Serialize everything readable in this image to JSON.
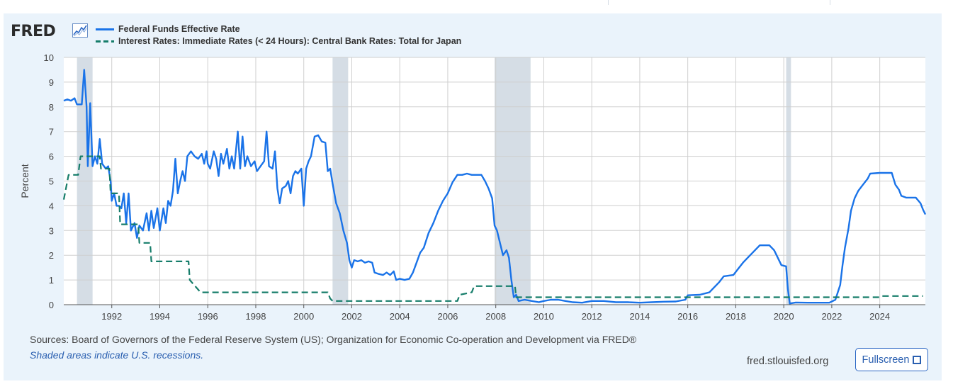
{
  "brand": {
    "logo_text": "FRED",
    "logo_icon": "line-chart-icon"
  },
  "colors": {
    "series_1": "#1a73e8",
    "series_2": "#167d6a",
    "recession": "#d5dde5",
    "card_bg": "#eaf3fb"
  },
  "chart_data": {
    "type": "line",
    "ylabel": "Percent",
    "xlabel": "",
    "ylim": [
      0,
      10
    ],
    "xlim": [
      1990.0,
      2025.9
    ],
    "yticks": [
      "0",
      "1",
      "2",
      "3",
      "4",
      "5",
      "6",
      "7",
      "8",
      "9",
      "10"
    ],
    "xticks": [
      "1992",
      "1994",
      "1996",
      "1998",
      "2000",
      "2002",
      "2004",
      "2006",
      "2008",
      "2010",
      "2012",
      "2014",
      "2016",
      "2018",
      "2020",
      "2022",
      "2024"
    ],
    "grid": true,
    "legend_position": "top-left",
    "recessions": [
      [
        1990.55,
        1991.2
      ],
      [
        2001.2,
        2001.85
      ],
      [
        2007.95,
        2009.45
      ],
      [
        2020.1,
        2020.3
      ]
    ],
    "series": [
      {
        "name": "Federal Funds Effective Rate",
        "style": "solid",
        "points": [
          [
            1990.0,
            8.25
          ],
          [
            1990.15,
            8.3
          ],
          [
            1990.3,
            8.25
          ],
          [
            1990.45,
            8.35
          ],
          [
            1990.55,
            8.1
          ],
          [
            1990.75,
            8.1
          ],
          [
            1990.85,
            9.5
          ],
          [
            1990.95,
            8.0
          ],
          [
            1991.0,
            5.6
          ],
          [
            1991.1,
            8.15
          ],
          [
            1991.2,
            5.6
          ],
          [
            1991.3,
            6.0
          ],
          [
            1991.4,
            5.7
          ],
          [
            1991.5,
            6.7
          ],
          [
            1991.6,
            5.7
          ],
          [
            1991.75,
            5.5
          ],
          [
            1991.85,
            5.6
          ],
          [
            1991.95,
            5.0
          ],
          [
            1992.0,
            4.2
          ],
          [
            1992.1,
            4.5
          ],
          [
            1992.2,
            4.0
          ],
          [
            1992.3,
            4.0
          ],
          [
            1992.4,
            3.9
          ],
          [
            1992.5,
            4.5
          ],
          [
            1992.6,
            3.3
          ],
          [
            1992.7,
            4.5
          ],
          [
            1992.8,
            3.0
          ],
          [
            1992.95,
            3.3
          ],
          [
            1993.05,
            2.7
          ],
          [
            1993.15,
            3.2
          ],
          [
            1993.3,
            3.0
          ],
          [
            1993.45,
            3.7
          ],
          [
            1993.55,
            3.0
          ],
          [
            1993.65,
            3.8
          ],
          [
            1993.75,
            3.1
          ],
          [
            1993.9,
            3.9
          ],
          [
            1994.0,
            3.0
          ],
          [
            1994.15,
            3.9
          ],
          [
            1994.25,
            3.3
          ],
          [
            1994.35,
            4.2
          ],
          [
            1994.45,
            4.0
          ],
          [
            1994.55,
            4.6
          ],
          [
            1994.65,
            5.9
          ],
          [
            1994.75,
            4.5
          ],
          [
            1994.85,
            5.0
          ],
          [
            1994.95,
            5.4
          ],
          [
            1995.05,
            5.0
          ],
          [
            1995.15,
            6.0
          ],
          [
            1995.3,
            6.2
          ],
          [
            1995.45,
            6.0
          ],
          [
            1995.6,
            5.9
          ],
          [
            1995.75,
            6.1
          ],
          [
            1995.85,
            5.7
          ],
          [
            1995.95,
            6.2
          ],
          [
            1996.0,
            5.7
          ],
          [
            1996.1,
            5.5
          ],
          [
            1996.25,
            6.2
          ],
          [
            1996.35,
            5.9
          ],
          [
            1996.45,
            5.2
          ],
          [
            1996.55,
            6.1
          ],
          [
            1996.65,
            5.7
          ],
          [
            1996.8,
            6.3
          ],
          [
            1996.9,
            5.5
          ],
          [
            1997.0,
            6.0
          ],
          [
            1997.1,
            5.5
          ],
          [
            1997.25,
            7.0
          ],
          [
            1997.35,
            5.5
          ],
          [
            1997.45,
            6.8
          ],
          [
            1997.55,
            5.6
          ],
          [
            1997.65,
            6.0
          ],
          [
            1997.8,
            5.6
          ],
          [
            1997.95,
            5.8
          ],
          [
            1998.05,
            5.4
          ],
          [
            1998.2,
            5.6
          ],
          [
            1998.35,
            5.8
          ],
          [
            1998.45,
            7.0
          ],
          [
            1998.55,
            5.6
          ],
          [
            1998.7,
            5.5
          ],
          [
            1998.8,
            6.2
          ],
          [
            1998.9,
            4.7
          ],
          [
            1999.0,
            4.1
          ],
          [
            1999.1,
            4.7
          ],
          [
            1999.25,
            4.8
          ],
          [
            1999.35,
            5.0
          ],
          [
            1999.45,
            4.5
          ],
          [
            1999.55,
            5.2
          ],
          [
            1999.65,
            5.4
          ],
          [
            1999.75,
            5.3
          ],
          [
            1999.9,
            5.5
          ],
          [
            2000.0,
            4.0
          ],
          [
            2000.1,
            5.5
          ],
          [
            2000.2,
            5.8
          ],
          [
            2000.3,
            6.0
          ],
          [
            2000.45,
            6.8
          ],
          [
            2000.6,
            6.85
          ],
          [
            2000.75,
            6.6
          ],
          [
            2000.9,
            6.55
          ],
          [
            2001.0,
            5.4
          ],
          [
            2001.1,
            5.5
          ],
          [
            2001.2,
            4.9
          ],
          [
            2001.35,
            4.1
          ],
          [
            2001.5,
            3.7
          ],
          [
            2001.65,
            3.0
          ],
          [
            2001.8,
            2.5
          ],
          [
            2001.9,
            1.8
          ],
          [
            2002.0,
            1.5
          ],
          [
            2002.1,
            1.8
          ],
          [
            2002.25,
            1.75
          ],
          [
            2002.4,
            1.8
          ],
          [
            2002.55,
            1.7
          ],
          [
            2002.7,
            1.75
          ],
          [
            2002.85,
            1.7
          ],
          [
            2002.95,
            1.3
          ],
          [
            2003.1,
            1.25
          ],
          [
            2003.3,
            1.2
          ],
          [
            2003.45,
            1.3
          ],
          [
            2003.6,
            1.2
          ],
          [
            2003.75,
            1.35
          ],
          [
            2003.85,
            1.0
          ],
          [
            2004.0,
            1.05
          ],
          [
            2004.2,
            1.0
          ],
          [
            2004.4,
            1.05
          ],
          [
            2004.55,
            1.3
          ],
          [
            2004.7,
            1.7
          ],
          [
            2004.85,
            2.1
          ],
          [
            2005.0,
            2.3
          ],
          [
            2005.2,
            2.9
          ],
          [
            2005.4,
            3.3
          ],
          [
            2005.6,
            3.8
          ],
          [
            2005.8,
            4.2
          ],
          [
            2006.0,
            4.5
          ],
          [
            2006.2,
            4.95
          ],
          [
            2006.4,
            5.25
          ],
          [
            2006.6,
            5.25
          ],
          [
            2006.8,
            5.3
          ],
          [
            2007.0,
            5.25
          ],
          [
            2007.2,
            5.25
          ],
          [
            2007.4,
            5.25
          ],
          [
            2007.55,
            5.0
          ],
          [
            2007.7,
            4.7
          ],
          [
            2007.85,
            4.3
          ],
          [
            2007.95,
            3.2
          ],
          [
            2008.05,
            3.0
          ],
          [
            2008.15,
            2.6
          ],
          [
            2008.3,
            2.0
          ],
          [
            2008.45,
            2.2
          ],
          [
            2008.55,
            1.9
          ],
          [
            2008.65,
            1.0
          ],
          [
            2008.75,
            0.3
          ],
          [
            2008.85,
            0.4
          ],
          [
            2008.95,
            0.15
          ],
          [
            2009.2,
            0.2
          ],
          [
            2009.5,
            0.15
          ],
          [
            2009.8,
            0.1
          ],
          [
            2010.0,
            0.15
          ],
          [
            2010.3,
            0.2
          ],
          [
            2010.6,
            0.2
          ],
          [
            2010.9,
            0.15
          ],
          [
            2011.2,
            0.1
          ],
          [
            2011.6,
            0.08
          ],
          [
            2012.0,
            0.15
          ],
          [
            2012.5,
            0.15
          ],
          [
            2013.0,
            0.1
          ],
          [
            2013.5,
            0.1
          ],
          [
            2014.0,
            0.08
          ],
          [
            2014.5,
            0.1
          ],
          [
            2015.0,
            0.12
          ],
          [
            2015.5,
            0.13
          ],
          [
            2015.9,
            0.2
          ],
          [
            2016.0,
            0.38
          ],
          [
            2016.5,
            0.4
          ],
          [
            2016.9,
            0.5
          ],
          [
            2017.1,
            0.7
          ],
          [
            2017.3,
            0.9
          ],
          [
            2017.5,
            1.15
          ],
          [
            2017.9,
            1.2
          ],
          [
            2018.1,
            1.45
          ],
          [
            2018.3,
            1.7
          ],
          [
            2018.5,
            1.9
          ],
          [
            2018.8,
            2.2
          ],
          [
            2019.0,
            2.4
          ],
          [
            2019.4,
            2.4
          ],
          [
            2019.6,
            2.2
          ],
          [
            2019.8,
            1.8
          ],
          [
            2019.9,
            1.6
          ],
          [
            2020.1,
            1.55
          ],
          [
            2020.17,
            0.65
          ],
          [
            2020.25,
            0.05
          ],
          [
            2020.5,
            0.09
          ],
          [
            2021.0,
            0.08
          ],
          [
            2021.5,
            0.08
          ],
          [
            2021.9,
            0.08
          ],
          [
            2022.15,
            0.2
          ],
          [
            2022.35,
            0.8
          ],
          [
            2022.45,
            1.6
          ],
          [
            2022.55,
            2.3
          ],
          [
            2022.7,
            3.1
          ],
          [
            2022.8,
            3.8
          ],
          [
            2022.95,
            4.3
          ],
          [
            2023.1,
            4.6
          ],
          [
            2023.3,
            4.85
          ],
          [
            2023.5,
            5.1
          ],
          [
            2023.6,
            5.3
          ],
          [
            2024.0,
            5.33
          ],
          [
            2024.5,
            5.33
          ],
          [
            2024.65,
            4.85
          ],
          [
            2024.8,
            4.65
          ],
          [
            2024.9,
            4.4
          ],
          [
            2025.1,
            4.33
          ],
          [
            2025.5,
            4.33
          ],
          [
            2025.7,
            4.1
          ],
          [
            2025.8,
            3.85
          ],
          [
            2025.9,
            3.65
          ]
        ]
      },
      {
        "name": "Interest Rates: Immediate Rates (< 24 Hours): Central Bank Rates: Total for Japan",
        "style": "dashed",
        "points": [
          [
            1990.0,
            4.25
          ],
          [
            1990.2,
            5.25
          ],
          [
            1990.6,
            5.25
          ],
          [
            1990.7,
            6.0
          ],
          [
            1991.5,
            6.0
          ],
          [
            1991.55,
            5.5
          ],
          [
            1991.9,
            5.5
          ],
          [
            1991.95,
            4.5
          ],
          [
            1992.3,
            4.5
          ],
          [
            1992.35,
            3.25
          ],
          [
            1993.1,
            3.25
          ],
          [
            1993.15,
            2.5
          ],
          [
            1993.6,
            2.5
          ],
          [
            1993.65,
            1.75
          ],
          [
            1995.2,
            1.75
          ],
          [
            1995.25,
            1.0
          ],
          [
            1995.7,
            0.5
          ],
          [
            2001.0,
            0.5
          ],
          [
            2001.1,
            0.25
          ],
          [
            2001.2,
            0.15
          ],
          [
            2006.4,
            0.15
          ],
          [
            2006.5,
            0.4
          ],
          [
            2007.0,
            0.5
          ],
          [
            2007.1,
            0.75
          ],
          [
            2008.8,
            0.75
          ],
          [
            2008.85,
            0.3
          ],
          [
            2024.0,
            0.3
          ],
          [
            2024.1,
            0.35
          ],
          [
            2024.5,
            0.35
          ],
          [
            2025.0,
            0.35
          ],
          [
            2025.8,
            0.35
          ]
        ]
      }
    ]
  },
  "footer": {
    "sources": "Sources: Board of Governors of the Federal Reserve System (US); Organization for Economic Co-operation and Development via FRED®",
    "recession_note": "Shaded areas indicate U.S. recessions.",
    "site": "fred.stlouisfed.org",
    "fullscreen_label": "Fullscreen"
  }
}
